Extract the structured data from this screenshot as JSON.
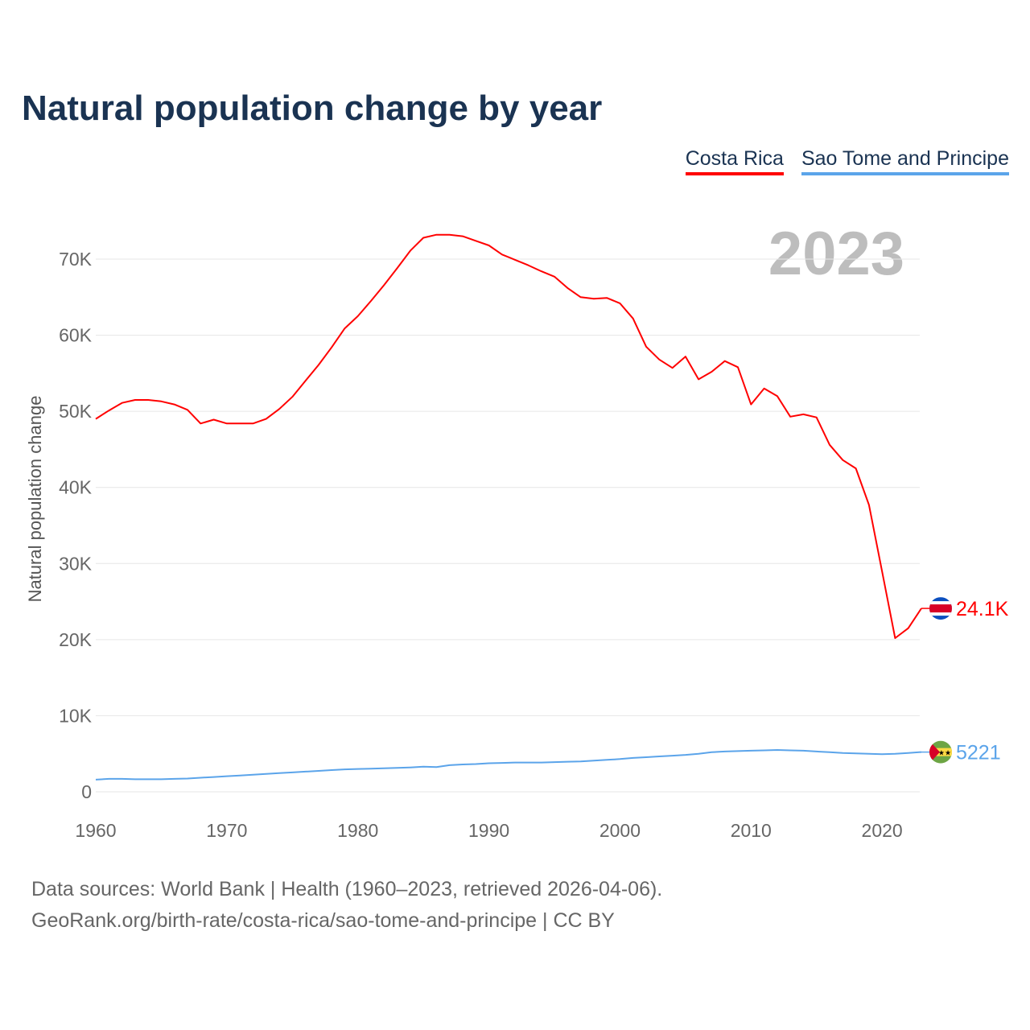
{
  "title": "Natural population change by year",
  "year_label": "2023",
  "footer": {
    "line1": "Data sources: World Bank | Health (1960–2023, retrieved 2026-04-06).",
    "line2": "GeoRank.org/birth-rate/costa-rica/sao-tome-and-principe | CC BY"
  },
  "chart_data": {
    "type": "line",
    "title": "Natural population change by year",
    "xlabel": "",
    "ylabel": "Natural population change",
    "xlim": [
      1960,
      2023
    ],
    "ylim": [
      0,
      70000
    ],
    "grid": true,
    "legend_position": "top-right",
    "x_ticks": [
      1960,
      1970,
      1980,
      1990,
      2000,
      2010,
      2020
    ],
    "x_tick_labels": [
      "1960",
      "1970",
      "1980",
      "1990",
      "2000",
      "2010",
      "2020"
    ],
    "y_ticks": [
      0,
      10000,
      20000,
      30000,
      40000,
      50000,
      60000,
      70000
    ],
    "y_tick_labels": [
      "0",
      "10K",
      "20K",
      "30K",
      "40K",
      "50K",
      "60K",
      "70K"
    ],
    "x": [
      1960,
      1961,
      1962,
      1963,
      1964,
      1965,
      1966,
      1967,
      1968,
      1969,
      1970,
      1971,
      1972,
      1973,
      1974,
      1975,
      1976,
      1977,
      1978,
      1979,
      1980,
      1981,
      1982,
      1983,
      1984,
      1985,
      1986,
      1987,
      1988,
      1989,
      1990,
      1991,
      1992,
      1993,
      1994,
      1995,
      1996,
      1997,
      1998,
      1999,
      2000,
      2001,
      2002,
      2003,
      2004,
      2005,
      2006,
      2007,
      2008,
      2009,
      2010,
      2011,
      2012,
      2013,
      2014,
      2015,
      2016,
      2017,
      2018,
      2019,
      2020,
      2021,
      2022,
      2023
    ],
    "series": [
      {
        "name": "Costa Rica",
        "color": "#ff0000",
        "end_label": "24.1K",
        "values": [
          49000,
          50100,
          51100,
          51500,
          51500,
          51300,
          50900,
          50200,
          48400,
          48900,
          48400,
          48400,
          48400,
          49000,
          50300,
          51900,
          54000,
          56100,
          58400,
          60900,
          62500,
          64500,
          66600,
          68800,
          71100,
          72800,
          73200,
          73200,
          73000,
          72400,
          71800,
          70600,
          69900,
          69200,
          68400,
          67700,
          66200,
          65000,
          64800,
          64900,
          64200,
          62200,
          58500,
          56800,
          55700,
          57200,
          54200,
          55200,
          56600,
          55800,
          50900,
          53000,
          52000,
          49300,
          49600,
          49200,
          45600,
          43600,
          42500,
          37700,
          29000,
          20200,
          21500,
          24100
        ]
      },
      {
        "name": "Sao Tome and Principe",
        "color": "#5ba4ea",
        "end_label": "5221",
        "values": [
          1600,
          1700,
          1700,
          1650,
          1650,
          1650,
          1700,
          1750,
          1850,
          1950,
          2050,
          2150,
          2250,
          2350,
          2450,
          2550,
          2650,
          2750,
          2850,
          2950,
          3000,
          3050,
          3100,
          3150,
          3200,
          3300,
          3250,
          3500,
          3600,
          3650,
          3750,
          3800,
          3850,
          3850,
          3850,
          3900,
          3950,
          4000,
          4100,
          4200,
          4300,
          4450,
          4550,
          4650,
          4750,
          4850,
          5000,
          5200,
          5300,
          5350,
          5400,
          5450,
          5500,
          5450,
          5400,
          5300,
          5200,
          5100,
          5050,
          5000,
          4950,
          5000,
          5100,
          5221
        ]
      }
    ]
  }
}
